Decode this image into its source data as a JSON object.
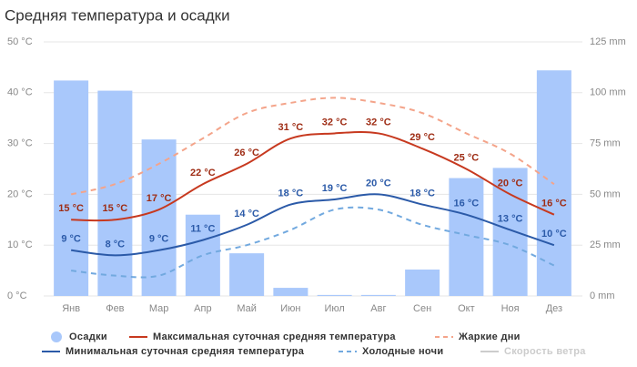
{
  "chart_data": {
    "type": "bar_line",
    "title": "Средняя температура и осадки",
    "categories": [
      "Янв",
      "Фев",
      "Мар",
      "Апр",
      "Май",
      "Июн",
      "Июл",
      "Авг",
      "Сен",
      "Окт",
      "Ноя",
      "Дез"
    ],
    "ylim": [
      0,
      50
    ],
    "yticks": [
      {
        "value": 0,
        "label": "0 °C"
      },
      {
        "value": 10,
        "label": "10 °C"
      },
      {
        "value": 20,
        "label": "20 °C"
      },
      {
        "value": 30,
        "label": "30 °C"
      },
      {
        "value": 40,
        "label": "40 °C"
      },
      {
        "value": 50,
        "label": "50 °C"
      }
    ],
    "y2lim": [
      0,
      125
    ],
    "y2ticks": [
      {
        "value": 0,
        "label": "0 mm"
      },
      {
        "value": 25,
        "label": "25 mm"
      },
      {
        "value": 50,
        "label": "50 mm"
      },
      {
        "value": 75,
        "label": "75 mm"
      },
      {
        "value": 100,
        "label": "100 mm"
      },
      {
        "value": 125,
        "label": "125 mm"
      }
    ],
    "grid": true,
    "series": [
      {
        "name": "Осадки",
        "kind": "bar",
        "axis": "y2",
        "color": "#a9c8fb",
        "values": [
          106,
          101,
          77,
          40,
          21,
          4,
          0.5,
          0.5,
          13,
          58,
          63,
          111
        ]
      },
      {
        "name": "Максимальная суточная средняя температура",
        "kind": "line",
        "color": "#c7391f",
        "label_color": "#9e2c14",
        "values": [
          15,
          15,
          17,
          22,
          26,
          31,
          32,
          32,
          29,
          25,
          20,
          16
        ],
        "value_labels": [
          "15 °C",
          "15 °C",
          "17 °C",
          "22 °C",
          "26 °C",
          "31 °C",
          "32 °C",
          "32 °C",
          "29 °C",
          "25 °C",
          "20 °C",
          "16 °C"
        ]
      },
      {
        "name": "Жаркие дни",
        "kind": "line",
        "dashed": true,
        "color": "#f4a48a",
        "values": [
          20,
          22,
          26,
          31,
          36,
          38,
          39,
          38,
          36,
          32,
          28,
          22
        ]
      },
      {
        "name": "Минимальная суточная средняя температура",
        "kind": "line",
        "color": "#2b5aa8",
        "label_color": "#2b5aa8",
        "values": [
          9,
          8,
          9,
          11,
          14,
          18,
          19,
          20,
          18,
          16,
          13,
          10
        ],
        "value_labels": [
          "9 °C",
          "8 °C",
          "9 °C",
          "11 °C",
          "14 °C",
          "18 °C",
          "19 °C",
          "20 °C",
          "18 °C",
          "16 °C",
          "13 °C",
          "10 °C"
        ]
      },
      {
        "name": "Холодные ночи",
        "kind": "line",
        "dashed": true,
        "color": "#72a9df",
        "values": [
          5,
          4,
          4,
          8,
          10,
          13,
          17,
          17,
          14,
          12,
          10,
          6
        ]
      }
    ],
    "legend_extra": [
      {
        "name": "Скорость ветра",
        "color": "#cccccc"
      }
    ]
  }
}
